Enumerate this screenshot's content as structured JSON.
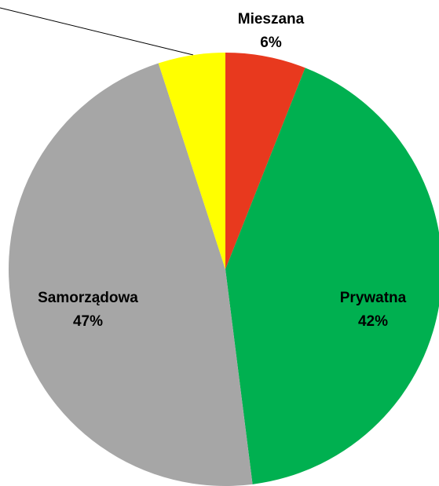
{
  "chart_data": {
    "type": "pie",
    "categories": [
      "Mieszana",
      "Prywatna",
      "Samorządowa",
      null
    ],
    "values": [
      6,
      42,
      47,
      5
    ],
    "value_labels": [
      "6%",
      "42%",
      "47%",
      null
    ],
    "colors": [
      "#e8391e",
      "#00b050",
      "#a6a6a6",
      "#ffff00"
    ]
  }
}
